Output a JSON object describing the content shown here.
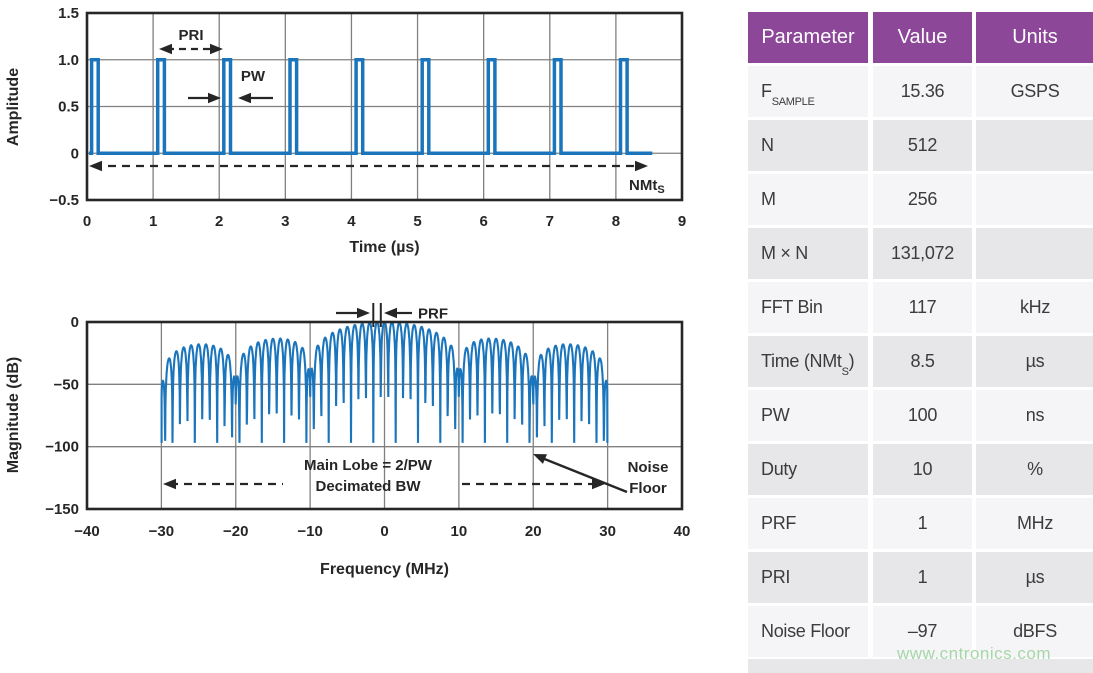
{
  "theme": {
    "trace_blue": "#1b75bc",
    "axis": "#262626",
    "grid": "#808080",
    "text": "#262626",
    "table_header_bg": "#8c4799",
    "table_header_text": "#ffffff",
    "row_light": "#f5f4f6",
    "row_dark": "#e7e6e8",
    "table_text": "#3c3c3c",
    "watermark_green": "#a6d7a8",
    "background": "#ffffff"
  },
  "watermark": "www.cntronics.com",
  "table": {
    "headers": [
      "Parameter",
      "Value",
      "Units"
    ],
    "rows": [
      {
        "param": "F",
        "param_sub": "SAMPLE",
        "param_after": "",
        "value": "15.36",
        "units": "GSPS"
      },
      {
        "param": "N",
        "param_sub": "",
        "param_after": "",
        "value": "512",
        "units": ""
      },
      {
        "param": "M",
        "param_sub": "",
        "param_after": "",
        "value": "256",
        "units": ""
      },
      {
        "param": "M × N",
        "param_sub": "",
        "param_after": "",
        "value": "131,072",
        "units": ""
      },
      {
        "param": "FFT Bin",
        "param_sub": "",
        "param_after": "",
        "value": "117",
        "units": "kHz"
      },
      {
        "param": "Time (NMt",
        "param_sub": "S",
        "param_after": ")",
        "value": "8.5",
        "units": "µs"
      },
      {
        "param": "PW",
        "param_sub": "",
        "param_after": "",
        "value": "100",
        "units": "ns"
      },
      {
        "param": "Duty",
        "param_sub": "",
        "param_after": "",
        "value": "10",
        "units": "%"
      },
      {
        "param": "PRF",
        "param_sub": "",
        "param_after": "",
        "value": "1",
        "units": "MHz"
      },
      {
        "param": "PRI",
        "param_sub": "",
        "param_after": "",
        "value": "1",
        "units": "µs"
      },
      {
        "param": "Noise Floor",
        "param_sub": "",
        "param_after": "",
        "value": "–97",
        "units": "dBFS"
      }
    ]
  },
  "chart_data": [
    {
      "type": "line",
      "id": "pulse-train-time-domain",
      "title": "",
      "xlabel": "Time (µs)",
      "ylabel": "Amplitude",
      "xlim": [
        0,
        9
      ],
      "ylim": [
        -0.5,
        1.5
      ],
      "xticks": [
        0,
        1,
        2,
        3,
        4,
        5,
        6,
        7,
        8,
        9
      ],
      "xticklabels": [
        "0",
        "1",
        "2",
        "3",
        "4",
        "5",
        "6",
        "7",
        "8",
        "9"
      ],
      "yticks": [
        1.5,
        1.0,
        0.5,
        0,
        -0.5
      ],
      "yticklabels": [
        "1.5",
        "1.0",
        "0.5",
        "0",
        "−0.5"
      ],
      "grid": true,
      "series": [
        {
          "name": "rectangular pulse train",
          "waveform": "rect-pulses",
          "amplitude": 1.0,
          "baseline": 0,
          "pri_us": 1.0,
          "pw_us": 0.1,
          "first_pulse_start_us": 0.07,
          "pulse_count": 9,
          "trace_start_us": 0.03,
          "trace_end_us": 8.55
        }
      ],
      "annotations": {
        "pri_label": "PRI",
        "pw_label": "PW",
        "nmts_label": "NMt",
        "nmts_sub": "S"
      }
    },
    {
      "type": "line",
      "id": "pulse-spectrum",
      "title": "",
      "xlabel": "Frequency (MHz)",
      "ylabel": "Magnitude (dB)",
      "xlim": [
        -40,
        40
      ],
      "ylim": [
        -150,
        0
      ],
      "xticks": [
        -40,
        -30,
        -20,
        -10,
        0,
        10,
        20,
        30,
        40
      ],
      "xticklabels": [
        "−40",
        "−30",
        "−20",
        "−10",
        "0",
        "10",
        "20",
        "30",
        "40"
      ],
      "yticks": [
        0,
        -50,
        -100,
        -150
      ],
      "yticklabels": [
        "0",
        "−50",
        "−100",
        "−150"
      ],
      "grid": true,
      "series": [
        {
          "name": "decimated pulse spectrum",
          "waveform": "sinc-comb",
          "span_mhz": [
            -30,
            30
          ],
          "envelope_null_spacing_mhz": 10,
          "comb_spacing_mhz": 1,
          "peak_db": 0,
          "noise_floor_db": -97
        }
      ],
      "annotations": {
        "prf_label": "PRF",
        "main_lobe_label": "Main Lobe = 2/PW",
        "decimated_bw_label": "Decimated BW",
        "noise_floor_label_line1": "Noise",
        "noise_floor_label_line2": "Floor"
      }
    }
  ]
}
